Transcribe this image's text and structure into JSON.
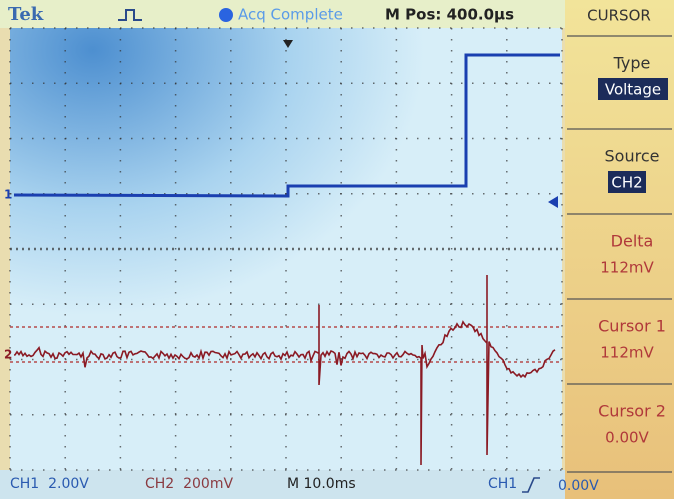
{
  "header": {
    "brand": "Tek",
    "status": "Acq Complete",
    "position": "M Pos: 400.0µs"
  },
  "menu": {
    "title": "CURSOR",
    "items": [
      {
        "label": "Type",
        "value": "Voltage"
      },
      {
        "label": "Source",
        "value": "CH2"
      },
      {
        "label": "Delta",
        "value": "112mV"
      },
      {
        "label": "Cursor 1",
        "value": "112mV"
      },
      {
        "label": "Cursor 2",
        "value": "0.00V"
      }
    ]
  },
  "markers": {
    "ch1": "1",
    "ch2": "2"
  },
  "footer": {
    "ch1_scale": "CH1  2.00V",
    "ch2_scale": "CH2  200mV",
    "timebase": "M 10.0ms",
    "trigger_source": "CH1",
    "trigger_level": "0.00V"
  }
}
